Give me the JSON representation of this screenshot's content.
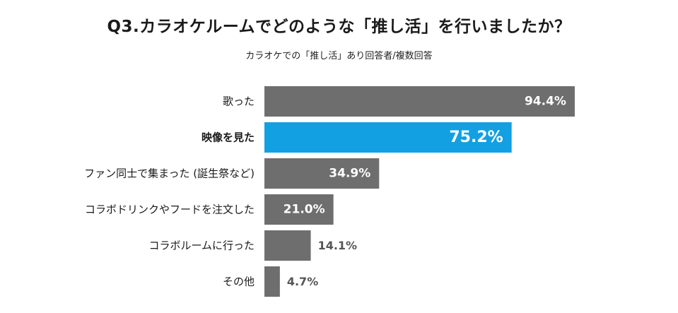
{
  "chart_data": {
    "type": "bar",
    "orientation": "horizontal",
    "title": "Q3.カラオケルームでどのような「推し活」を行いましたか？",
    "subtitle": "カラオケでの「推し活」あり回答者/複数回答",
    "categories": [
      "歌った",
      "映像を見た",
      "ファン同士で集まった (誕生祭など)",
      "コラボドリンクやフードを注文した",
      "コラボルームに行った",
      "その他"
    ],
    "values": [
      94.4,
      75.2,
      34.9,
      21.0,
      14.1,
      4.7
    ],
    "value_labels": [
      "94.4%",
      "75.2%",
      "34.9%",
      "21.0%",
      "14.1%",
      "4.7%"
    ],
    "highlight_index": 1,
    "xlim": [
      0,
      100
    ],
    "grid": false,
    "colors": {
      "bar": "#6e6e6e",
      "highlight": "#12a0e3",
      "label_inside": "#ffffff",
      "label_outside": "#555555"
    }
  }
}
